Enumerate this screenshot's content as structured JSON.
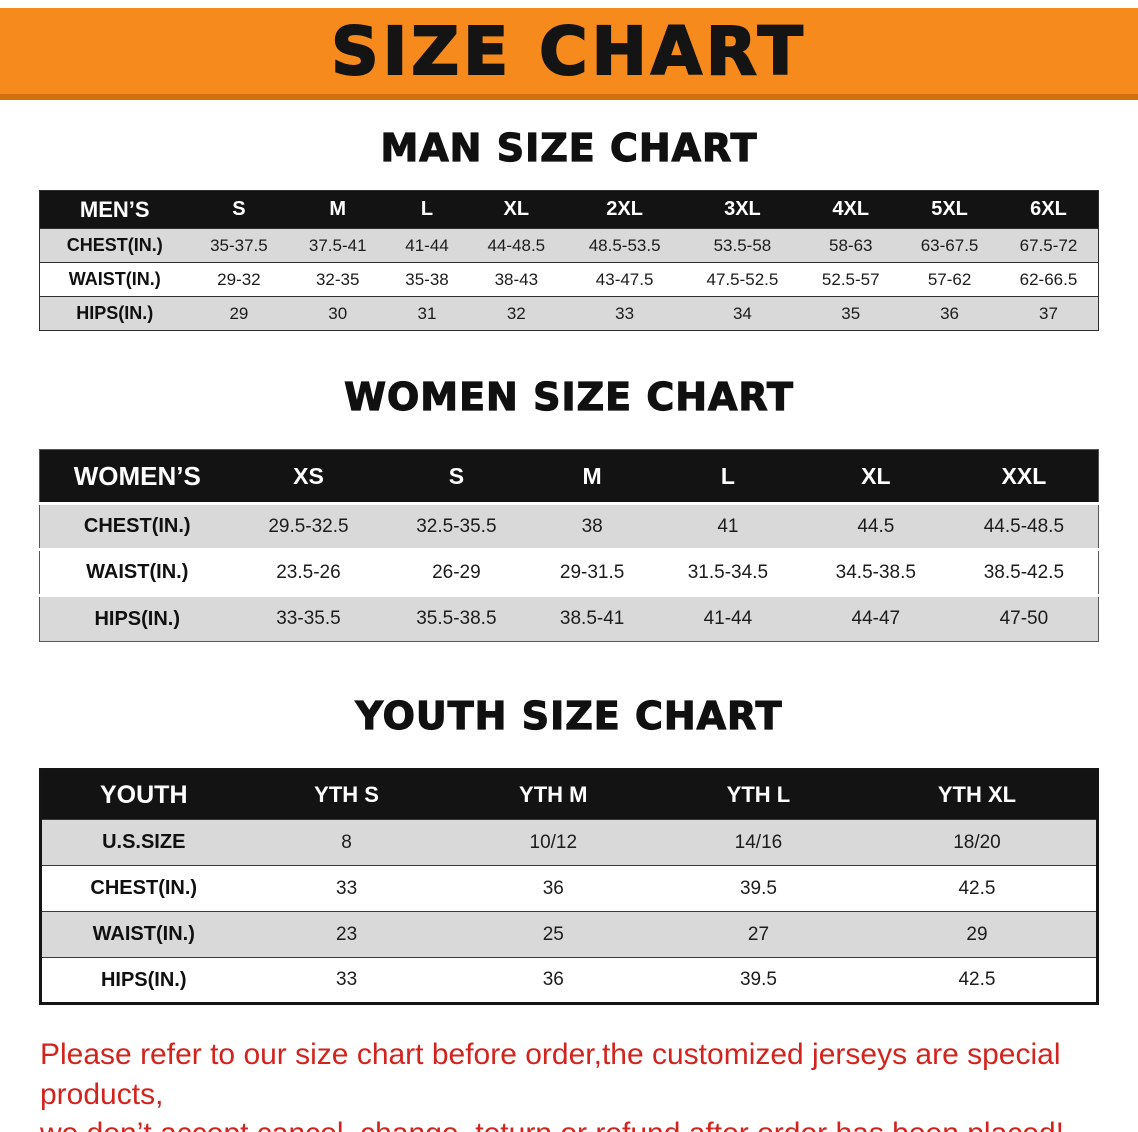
{
  "banner": {
    "title": "SIZE CHART"
  },
  "sections": [
    {
      "heading": "MAN SIZE CHART",
      "table": {
        "header": [
          "MEN’S",
          "S",
          "M",
          "L",
          "XL",
          "2XL",
          "3XL",
          "4XL",
          "5XL",
          "6XL"
        ],
        "rows": [
          [
            "CHEST(IN.)",
            "35-37.5",
            "37.5-41",
            "41-44",
            "44-48.5",
            "48.5-53.5",
            "53.5-58",
            "58-63",
            "63-67.5",
            "67.5-72"
          ],
          [
            "WAIST(IN.)",
            "29-32",
            "32-35",
            "35-38",
            "38-43",
            "43-47.5",
            "47.5-52.5",
            "52.5-57",
            "57-62",
            "62-66.5"
          ],
          [
            "HIPS(IN.)",
            "29",
            "30",
            "31",
            "32",
            "33",
            "34",
            "35",
            "36",
            "37"
          ]
        ]
      }
    },
    {
      "heading": "WOMEN SIZE CHART",
      "table": {
        "header": [
          "WOMEN’S",
          "XS",
          "S",
          "M",
          "L",
          "XL",
          "XXL"
        ],
        "rows": [
          [
            "CHEST(IN.)",
            "29.5-32.5",
            "32.5-35.5",
            "38",
            "41",
            "44.5",
            "44.5-48.5"
          ],
          [
            "WAIST(IN.)",
            "23.5-26",
            "26-29",
            "29-31.5",
            "31.5-34.5",
            "34.5-38.5",
            "38.5-42.5"
          ],
          [
            "HIPS(IN.)",
            "33-35.5",
            "35.5-38.5",
            "38.5-41",
            "41-44",
            "44-47",
            "47-50"
          ]
        ]
      }
    },
    {
      "heading": "YOUTH SIZE CHART",
      "table": {
        "header": [
          "YOUTH",
          "YTH S",
          "YTH M",
          "YTH L",
          "YTH XL"
        ],
        "rows": [
          [
            "U.S.SIZE",
            "8",
            "10/12",
            "14/16",
            "18/20"
          ],
          [
            "CHEST(IN.)",
            "33",
            "36",
            "39.5",
            "42.5"
          ],
          [
            "WAIST(IN.)",
            "23",
            "25",
            "27",
            "29"
          ],
          [
            "HIPS(IN.)",
            "33",
            "36",
            "39.5",
            "42.5"
          ]
        ]
      }
    }
  ],
  "footer": {
    "lines": [
      "Please refer to our size chart before order,the customized jerseys are special products,",
      "we don’t accept cancel, change, teturn or refund after order has been placed!"
    ]
  },
  "colors": {
    "banner_orange": "#f68a1c",
    "banner_orange_dark": "#d2700e",
    "header_black": "#131313",
    "row_gray": "#d9d9d9",
    "disclaimer_red": "#d2241e"
  }
}
